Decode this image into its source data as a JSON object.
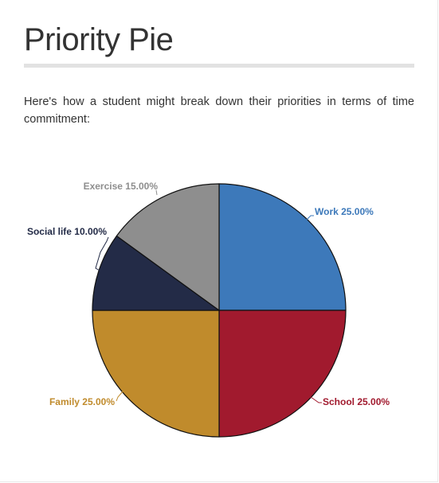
{
  "page": {
    "title": "Priority Pie",
    "intro": "Here's how a student might break down their priorities in terms of time commitment:"
  },
  "chart_data": {
    "type": "pie",
    "title": "",
    "start_angle_deg": 0,
    "direction": "clockwise",
    "slices": [
      {
        "name": "Work",
        "value": 25.0,
        "label": "Work 25.00%",
        "color": "#3d79ba"
      },
      {
        "name": "School",
        "value": 25.0,
        "label": "School 25.00%",
        "color": "#a11a2e"
      },
      {
        "name": "Family",
        "value": 25.0,
        "label": "Family 25.00%",
        "color": "#c08b2c"
      },
      {
        "name": "Social life",
        "value": 10.0,
        "label": "Social life 10.00%",
        "color": "#232b47"
      },
      {
        "name": "Exercise",
        "value": 15.0,
        "label": "Exercise 15.00%",
        "color": "#8e8e8e"
      }
    ],
    "label_colors": [
      "#3d79ba",
      "#a11a2e",
      "#c08b2c",
      "#232b47",
      "#8e8e8e"
    ]
  }
}
